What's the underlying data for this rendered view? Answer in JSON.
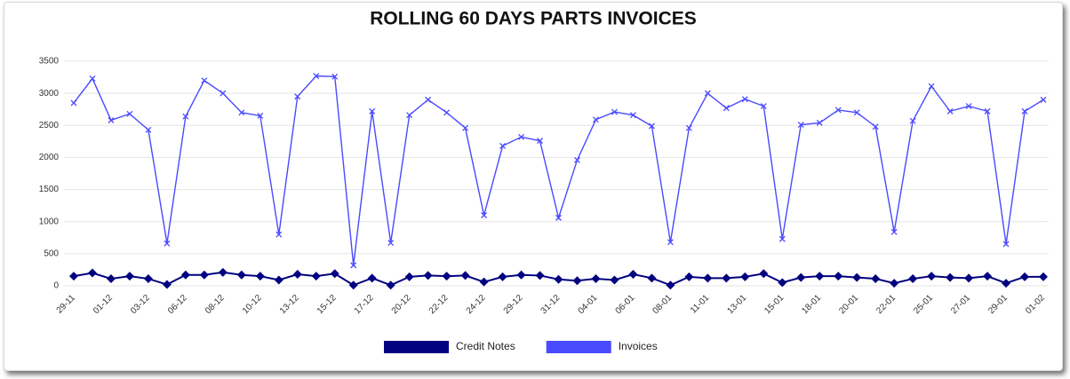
{
  "chart_data": {
    "type": "line",
    "title": "ROLLING 60 DAYS PARTS INVOICES",
    "categories": [
      "29-11",
      null,
      "01-12",
      null,
      "03-12",
      null,
      "06-12",
      null,
      "08-12",
      null,
      "10-12",
      null,
      "13-12",
      null,
      "15-12",
      null,
      "17-12",
      null,
      "20-12",
      null,
      "22-12",
      null,
      "24-12",
      null,
      "29-12",
      null,
      "31-12",
      null,
      "04-01",
      null,
      "06-01",
      null,
      "08-01",
      null,
      "11-01",
      null,
      "13-01",
      null,
      "15-01",
      null,
      "18-01",
      null,
      "20-01",
      null,
      "22-01",
      null,
      "25-01",
      null,
      "27-01",
      null,
      "29-01",
      null,
      "01-02"
    ],
    "series": [
      {
        "name": "Credit Notes",
        "color": "#000080",
        "marker": "diamond",
        "values": [
          150,
          200,
          110,
          150,
          110,
          20,
          170,
          170,
          210,
          170,
          150,
          90,
          180,
          150,
          190,
          10,
          120,
          10,
          140,
          160,
          150,
          160,
          60,
          140,
          170,
          160,
          100,
          80,
          110,
          90,
          180,
          120,
          10,
          140,
          120,
          120,
          140,
          190,
          50,
          130,
          150,
          150,
          130,
          110,
          40,
          110,
          150,
          130,
          120,
          150,
          40,
          140,
          140
        ]
      },
      {
        "name": "Invoices",
        "color": "#4a4aff",
        "marker": "x",
        "values": [
          2850,
          3230,
          2580,
          2680,
          2430,
          660,
          2640,
          3200,
          3000,
          2700,
          2650,
          800,
          2950,
          3270,
          3260,
          320,
          2720,
          670,
          2660,
          2900,
          2700,
          2460,
          1100,
          2180,
          2320,
          2260,
          1060,
          1960,
          2590,
          2710,
          2660,
          2490,
          680,
          2460,
          3000,
          2770,
          2910,
          2800,
          730,
          2510,
          2540,
          2740,
          2700,
          2480,
          840,
          2570,
          3110,
          2720,
          2800,
          2720,
          650,
          2720,
          2900
        ]
      }
    ],
    "ylim": [
      0,
      3500
    ],
    "yticks": [
      0,
      500,
      1000,
      1500,
      2000,
      2500,
      3000,
      3500
    ],
    "grid": true,
    "legend": "bottom"
  }
}
